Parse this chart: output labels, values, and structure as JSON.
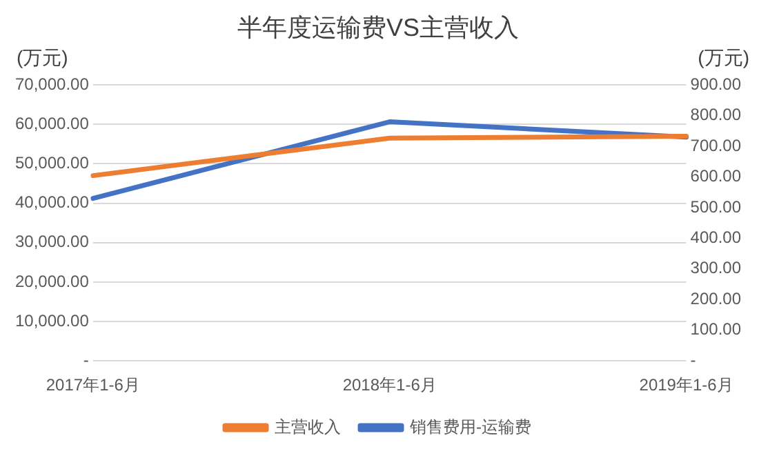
{
  "chart_data": {
    "type": "line",
    "title": "半年度运输费VS主营收入",
    "ylabel": "(万元)",
    "y2label": "(万元)",
    "categories": [
      "2017年1-6月",
      "2018年1-6月",
      "2019年1-6月"
    ],
    "series": [
      {
        "name": "主营收入",
        "color": "#ed7d31",
        "values": [
          47000,
          56500,
          57000
        ]
      },
      {
        "name": "销售费用-运输费",
        "color": "#4472c4",
        "values": [
          530,
          780,
          730
        ],
        "axis": "y2"
      }
    ],
    "ylim": [
      0,
      70000
    ],
    "yticks": [
      {
        "value": 0,
        "label": "-"
      },
      {
        "value": 10000,
        "label": "10,000.00"
      },
      {
        "value": 20000,
        "label": "20,000.00"
      },
      {
        "value": 30000,
        "label": "30,000.00"
      },
      {
        "value": 40000,
        "label": "40,000.00"
      },
      {
        "value": 50000,
        "label": "50,000.00"
      },
      {
        "value": 60000,
        "label": "60,000.00"
      },
      {
        "value": 70000,
        "label": "70,000.00"
      }
    ],
    "y2lim": [
      0,
      900
    ],
    "y2ticks": [
      {
        "value": 0,
        "label": "-"
      },
      {
        "value": 100,
        "label": "100.00"
      },
      {
        "value": 200,
        "label": "200.00"
      },
      {
        "value": 300,
        "label": "300.00"
      },
      {
        "value": 400,
        "label": "400.00"
      },
      {
        "value": 500,
        "label": "500.00"
      },
      {
        "value": 600,
        "label": "600.00"
      },
      {
        "value": 700,
        "label": "700.00"
      },
      {
        "value": 800,
        "label": "800.00"
      },
      {
        "value": 900,
        "label": "900.00"
      }
    ],
    "grid": "y",
    "legend": "bottom",
    "marker": "none",
    "line_style": "solid"
  }
}
